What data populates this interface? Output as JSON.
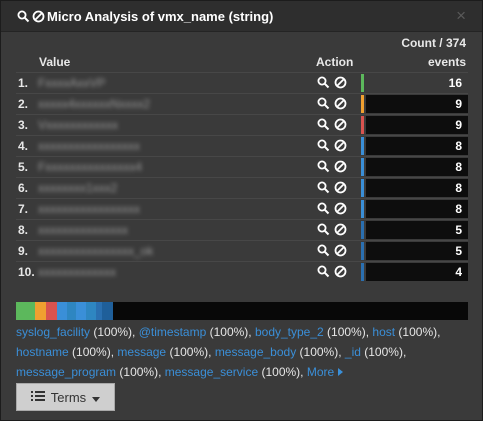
{
  "header": {
    "title": "Micro Analysis of vmx_name (string)",
    "close": "×"
  },
  "summary": {
    "count_label": "Count / 374"
  },
  "columns": {
    "value": "Value",
    "action": "Action",
    "events": "events"
  },
  "rows": [
    {
      "index": "1.",
      "value": "FxxxxAxxVP",
      "count": "16",
      "color": "#5cb85c"
    },
    {
      "index": "2.",
      "value": "xxxxx4xxxxxxNxxxx2",
      "count": "9",
      "color": "#f0a030"
    },
    {
      "index": "3.",
      "value": "Vxxxxxxxxxxxx",
      "count": "9",
      "color": "#d9534f"
    },
    {
      "index": "4.",
      "value": "xxxxxxxxxxxxxxxxx",
      "count": "8",
      "color": "#3a8fd8"
    },
    {
      "index": "5.",
      "value": "Fxxxxxxxxxxxxxxx4",
      "count": "8",
      "color": "#3a8fd8"
    },
    {
      "index": "6.",
      "value": "xxxxxxxx1xxx2",
      "count": "8",
      "color": "#3a8fd8"
    },
    {
      "index": "7.",
      "value": "xxxxxxxxxxxxxxxxx",
      "count": "8",
      "color": "#3a8fd8"
    },
    {
      "index": "8.",
      "value": "xxxxxxxxxxxxxxx",
      "count": "5",
      "color": "#2a6fb0"
    },
    {
      "index": "9.",
      "value": "xxxxxxxxxxxxxxxx_ok",
      "count": "5",
      "color": "#2a6fb0"
    },
    {
      "index": "10.",
      "value": "xxxxxxxxxxxxx",
      "count": "4",
      "color": "#2a6fb0"
    }
  ],
  "strip_segments": [
    {
      "fraction": 0.0428,
      "color": "#5cb85c"
    },
    {
      "fraction": 0.0241,
      "color": "#f0a030"
    },
    {
      "fraction": 0.0241,
      "color": "#d9534f"
    },
    {
      "fraction": 0.0214,
      "color": "#3a8fd8"
    },
    {
      "fraction": 0.0214,
      "color": "#2e86c1"
    },
    {
      "fraction": 0.0214,
      "color": "#3a8fd8"
    },
    {
      "fraction": 0.0214,
      "color": "#2e86c1"
    },
    {
      "fraction": 0.0134,
      "color": "#2a6fb0"
    },
    {
      "fraction": 0.0134,
      "color": "#1f5f9a"
    },
    {
      "fraction": 0.0107,
      "color": "#1f5f9a"
    }
  ],
  "fields": [
    {
      "name": "syslog_facility",
      "pct": " (100%),"
    },
    {
      "name": "@timestamp",
      "pct": " (100%),"
    },
    {
      "name": "body_type_2",
      "pct": " (100%),"
    },
    {
      "name": "host",
      "pct": " (100%),"
    },
    {
      "name": "hostname",
      "pct": " (100%),"
    },
    {
      "name": "message",
      "pct": " (100%),"
    },
    {
      "name": "message_body",
      "pct": " (100%),"
    },
    {
      "name": "_id",
      "pct": " (100%),"
    },
    {
      "name": "message_program",
      "pct": " (100%),"
    },
    {
      "name": "message_service",
      "pct": " (100%),"
    }
  ],
  "more_label": "More",
  "terms_button": {
    "label": "Terms"
  }
}
